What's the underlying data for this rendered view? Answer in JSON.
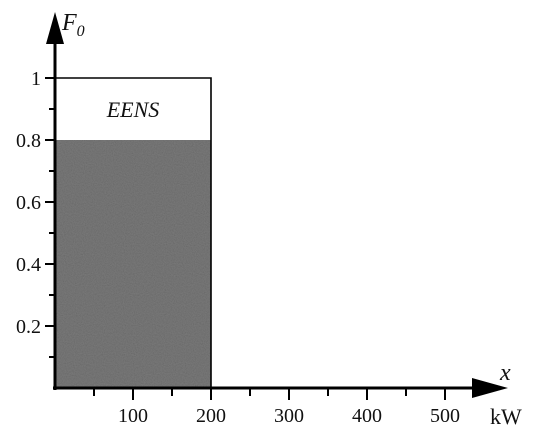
{
  "chart_data": {
    "type": "area",
    "xlabel": "x",
    "xunit": "kW",
    "ylabel_main": "F",
    "ylabel_sub": "0",
    "x_ticks": [
      100,
      200,
      300,
      400,
      500
    ],
    "x_minor_ticks": [
      50,
      150,
      250,
      350,
      450
    ],
    "y_ticks": [
      0.2,
      0.4,
      0.6,
      0.8,
      1
    ],
    "y_tick_labels": [
      "0.2",
      "0.4",
      "0.6",
      "0.8",
      "1"
    ],
    "y_minor_ticks": [
      0.1,
      0.3,
      0.5,
      0.7,
      0.9
    ],
    "xlim": [
      0,
      520
    ],
    "ylim": [
      0,
      1
    ],
    "series": [
      {
        "x": [
          0,
          200,
          200
        ],
        "y": [
          0.8,
          0.8,
          0
        ]
      }
    ],
    "outline": {
      "x": [
        0,
        200,
        200
      ],
      "y": [
        1,
        1,
        0
      ]
    },
    "annotations": [
      {
        "text": "EENS",
        "x": 100,
        "y": 0.9
      }
    ],
    "colors": {
      "shaded": "#7a7a7a",
      "axis": "#000000"
    }
  }
}
